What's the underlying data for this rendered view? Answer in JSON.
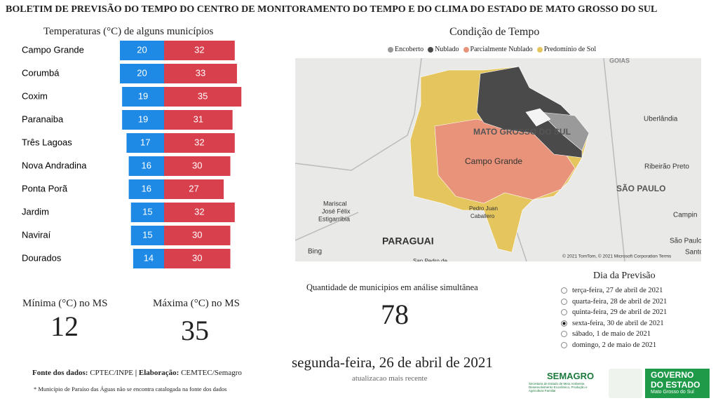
{
  "header": {
    "title": "BOLETIM DE PREVISÃO DO TEMPO DO CENTRO DE MONITORAMENTO DO TEMPO E DO CLIMA DO ESTADO DE MATO GROSSO DO SUL"
  },
  "temperature_chart": {
    "type": "bar",
    "title": "Temperaturas (°C) de alguns municípios",
    "categories": [
      "Campo Grande",
      "Corumbá",
      "Coxim",
      "Paranaiba",
      "Três Lagoas",
      "Nova Andradina",
      "Ponta Porã",
      "Jardim",
      "Naviraí",
      "Dourados"
    ],
    "min_values": [
      20,
      20,
      19,
      19,
      17,
      16,
      16,
      15,
      15,
      14
    ],
    "max_values": [
      32,
      33,
      35,
      31,
      32,
      30,
      27,
      32,
      30,
      30
    ],
    "min_color": "#1e8ae6",
    "max_color": "#d9404d"
  },
  "summary": {
    "min_label": "Mínima (°C) no MS",
    "min_value": 12,
    "max_label": "Máxima (°C) no MS",
    "max_value": 35
  },
  "map": {
    "title": "Condição de Tempo",
    "legend": [
      {
        "name": "Encoberto",
        "color": "#9a9a9a"
      },
      {
        "name": "Nublado",
        "color": "#4a4a4a"
      },
      {
        "name": "Parcialmente Nublado",
        "color": "#e8937a"
      },
      {
        "name": "Predomínio de Sol",
        "color": "#e4c55e"
      }
    ],
    "labels": [
      "GOIÁS",
      "Uberlândia",
      "MATO GROSSO DO SUL",
      "Campo Grande",
      "Ribeirão Preto",
      "SÃO PAULO",
      "Mariscal",
      "José Félix",
      "Estigarribia",
      "Pedro Juan",
      "Caballero",
      "PARAGUAI",
      "Campin",
      "São Paulo",
      "Santo",
      "San Pedro de",
      "Bing"
    ],
    "attribution": "© 2021 TomTom, © 2021 Microsoft Corporation  Terms"
  },
  "count": {
    "label": "Quantidade de municipios em análise simultânea",
    "value": 78
  },
  "date": {
    "value": "segunda-feira, 26 de abril de 2021",
    "note": "atualizacao mais recente"
  },
  "forecast": {
    "title": "Dia da Previsão",
    "options": [
      "terça-feira, 27 de abril de 2021",
      "quarta-feira, 28 de abril de 2021",
      "quinta-feira, 29 de abril de 2021",
      "sexta-feira, 30 de abril de 2021",
      "sábado, 1 de maio de 2021",
      "domingo, 2 de maio de 2021"
    ],
    "selected": 3
  },
  "footer": {
    "source_label": "Fonte dos dados:",
    "source": "CPTEC/INPE",
    "separator": "|",
    "made_label": "Elaboração:",
    "made": "CEMTEC/Semagro",
    "note": "* Município de Paraíso das Águas não se encontra catalogada na fonte dos dados"
  },
  "logos": {
    "semagro": "SEMAGRO",
    "semagro_sub": "Secretaria de Estado de Meio Ambiente, Desenvolvimento Econômico, Produção e Agricultura Familiar",
    "gov1": "GOVERNO",
    "gov2": "DO ESTADO",
    "gov3": "Mato Grosso do Sul"
  }
}
